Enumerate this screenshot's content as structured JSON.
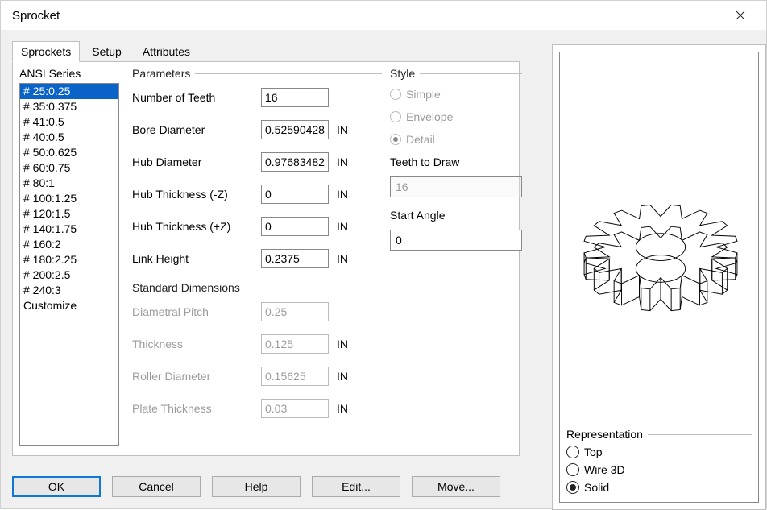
{
  "window": {
    "title": "Sprocket"
  },
  "tabs": {
    "sprockets": "Sprockets",
    "setup": "Setup",
    "attributes": "Attributes"
  },
  "ansi": {
    "header": "ANSI Series",
    "items": [
      "# 25:0.25",
      "# 35:0.375",
      "# 41:0.5",
      "# 40:0.5",
      "# 50:0.625",
      "# 60:0.75",
      "# 80:1",
      "# 100:1.25",
      "# 120:1.5",
      "# 140:1.75",
      "# 160:2",
      "# 180:2.25",
      "# 200:2.5",
      "# 240:3",
      "Customize"
    ],
    "selected_index": 0
  },
  "parameters": {
    "legend": "Parameters",
    "number_of_teeth": {
      "label": "Number of Teeth",
      "value": "16",
      "unit": ""
    },
    "bore_diameter": {
      "label": "Bore Diameter",
      "value": "0.52590428",
      "unit": "IN"
    },
    "hub_diameter": {
      "label": "Hub Diameter",
      "value": "0.97683482",
      "unit": "IN"
    },
    "hub_thickness_neg": {
      "label": "Hub Thickness (-Z)",
      "value": "0",
      "unit": "IN"
    },
    "hub_thickness_pos": {
      "label": "Hub Thickness (+Z)",
      "value": "0",
      "unit": "IN"
    },
    "link_height": {
      "label": "Link Height",
      "value": "0.2375",
      "unit": "IN"
    }
  },
  "standard": {
    "legend": "Standard Dimensions",
    "diametral_pitch": {
      "label": "Diametral Pitch",
      "value": "0.25",
      "unit": ""
    },
    "thickness": {
      "label": "Thickness",
      "value": "0.125",
      "unit": "IN"
    },
    "roller_diameter": {
      "label": "Roller Diameter",
      "value": "0.15625",
      "unit": "IN"
    },
    "plate_thickness": {
      "label": "Plate Thickness",
      "value": "0.03",
      "unit": "IN"
    }
  },
  "style": {
    "legend": "Style",
    "simple": "Simple",
    "envelope": "Envelope",
    "detail": "Detail",
    "teeth_to_draw_label": "Teeth to Draw",
    "teeth_to_draw_value": "16",
    "start_angle_label": "Start Angle",
    "start_angle_value": "0"
  },
  "buttons": {
    "ok": "OK",
    "cancel": "Cancel",
    "help": "Help",
    "edit": "Edit...",
    "move": "Move..."
  },
  "representation": {
    "legend": "Representation",
    "top": "Top",
    "wire3d": "Wire 3D",
    "solid": "Solid"
  }
}
